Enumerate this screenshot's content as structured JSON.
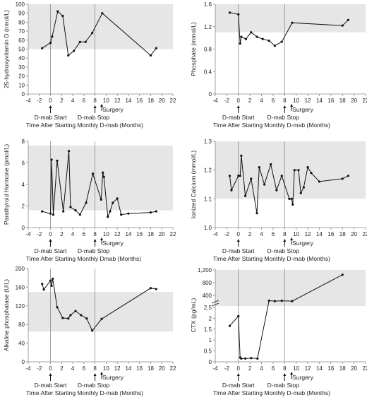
{
  "chart_data": [
    {
      "type": "line",
      "ylabel": "25-hydroxyvitamin D (nmol/L)",
      "xlabel": "Time After Starting Monthly D-mab (Months)",
      "xlim": [
        -4,
        22
      ],
      "xticks": [
        -4,
        -2,
        0,
        2,
        4,
        6,
        8,
        10,
        12,
        14,
        16,
        18,
        20,
        22
      ],
      "ylim": [
        0,
        100
      ],
      "yticks": [
        0,
        10,
        20,
        30,
        40,
        50,
        60,
        70,
        80,
        90,
        100
      ],
      "reference_band": [
        50,
        100
      ],
      "vlines": [
        0,
        8
      ],
      "annotations": [
        "D-mab Start",
        "D-mab Stop",
        "Surgery"
      ],
      "x": [
        -1.5,
        0,
        0.3,
        1.3,
        2.2,
        3.2,
        4.2,
        5.3,
        6.3,
        7.5,
        9.3,
        18,
        19
      ],
      "y": [
        51,
        57,
        64,
        92,
        87,
        43,
        48,
        58,
        58,
        68,
        90,
        43,
        51
      ]
    },
    {
      "type": "line",
      "ylabel": "Phosphate (mmol/L)",
      "xlabel": "Time After Starting Monthly D-mab (Months)",
      "xlim": [
        -4,
        22
      ],
      "xticks": [
        -4,
        -2,
        0,
        2,
        4,
        6,
        8,
        10,
        12,
        14,
        16,
        18,
        20,
        22
      ],
      "ylim": [
        0,
        1.6
      ],
      "yticks": [
        "0",
        "0.4",
        "0.8",
        "1.2",
        "1.6"
      ],
      "reference_band": [
        1.1,
        1.6
      ],
      "vlines": [
        0,
        8
      ],
      "annotations": [
        "D-mab Start",
        "D-mab Stop",
        "Surgery"
      ],
      "x": [
        -1.5,
        0,
        0.3,
        0.5,
        1.3,
        2.2,
        3.2,
        4.2,
        5.3,
        6.3,
        7.5,
        9.3,
        18,
        19
      ],
      "y": [
        1.45,
        1.42,
        0.9,
        1.02,
        0.98,
        1.1,
        1.02,
        0.98,
        0.95,
        0.86,
        0.93,
        1.27,
        1.22,
        1.32
      ]
    },
    {
      "type": "line",
      "ylabel": "Parathyroid Hormone (pmol/L)",
      "xlabel": "Time After Starting Monthly Dmab (Months)",
      "xlim": [
        -4,
        22
      ],
      "xticks": [
        -4,
        -2,
        0,
        2,
        4,
        6,
        8,
        10,
        12,
        14,
        16,
        18,
        20,
        22
      ],
      "ylim": [
        0,
        8
      ],
      "yticks": [
        0,
        2,
        4,
        6,
        8
      ],
      "reference_band": [
        1.6,
        7.6
      ],
      "vlines": [
        0,
        8
      ],
      "annotations": [
        "D-mab Start",
        "D-mab Stop",
        "Surgery"
      ],
      "x": [
        -1.5,
        0,
        0.2,
        0.5,
        1.2,
        2.3,
        3.3,
        3.6,
        4.5,
        5.3,
        6.4,
        7.6,
        9.1,
        9.4,
        9.6,
        10.3,
        10.7,
        11.2,
        12.0,
        12.7,
        14.0,
        18.0,
        19.0
      ],
      "y": [
        1.5,
        1.3,
        6.3,
        1.2,
        6.2,
        1.5,
        7.1,
        1.9,
        1.6,
        1.2,
        2.3,
        5.0,
        2.6,
        5.1,
        4.7,
        1.0,
        1.5,
        2.3,
        2.7,
        1.2,
        1.3,
        1.4,
        1.5
      ]
    },
    {
      "type": "line",
      "ylabel": "Ionized Calcium (mmol/L)",
      "xlabel": "Time After Starting Monthly D-mab (Months)",
      "xlim": [
        -4,
        22
      ],
      "xticks": [
        -4,
        -2,
        0,
        2,
        4,
        6,
        8,
        10,
        12,
        14,
        16,
        18,
        20,
        22
      ],
      "ylim": [
        1.0,
        1.3
      ],
      "yticks": [
        "1.0",
        "1.1",
        "1.2",
        "1.3"
      ],
      "reference_band": [
        1.1,
        1.3
      ],
      "vlines": [
        0,
        8
      ],
      "annotations": [
        "D-mab Start",
        "D-mab Stop",
        "Surgery"
      ],
      "x": [
        -1.5,
        -1.2,
        0,
        0.3,
        0.5,
        1.2,
        2.2,
        3.2,
        3.6,
        4.5,
        5.6,
        6.6,
        7.5,
        8.8,
        9.2,
        9.4,
        9.7,
        10.4,
        10.8,
        11.3,
        12.0,
        12.6,
        14.0,
        18.0,
        19.0
      ],
      "y": [
        1.18,
        1.13,
        1.18,
        1.18,
        1.25,
        1.11,
        1.17,
        1.05,
        1.21,
        1.15,
        1.22,
        1.13,
        1.18,
        1.1,
        1.1,
        1.08,
        1.2,
        1.2,
        1.12,
        1.14,
        1.21,
        1.19,
        1.16,
        1.17,
        1.18
      ]
    },
    {
      "type": "line",
      "ylabel": "Alkaline phosphatase (U/L)",
      "xlabel": "Time After Starting Monthly D-mab (Months)",
      "xlim": [
        -4,
        22
      ],
      "xticks": [
        -4,
        -2,
        0,
        2,
        4,
        6,
        8,
        10,
        12,
        14,
        16,
        18,
        20,
        22
      ],
      "ylim": [
        0,
        200
      ],
      "yticks": [
        0,
        40,
        80,
        120,
        160,
        200
      ],
      "reference_band": [
        65,
        150
      ],
      "vlines": [
        0,
        8
      ],
      "annotations": [
        "D-mab Start",
        "D-mab Stop",
        "Surgery"
      ],
      "x": [
        -1.5,
        -1.2,
        0,
        0.2,
        0.4,
        1.2,
        2.2,
        3.2,
        3.6,
        4.5,
        5.5,
        6.5,
        7.5,
        9.2,
        18.0,
        19.0
      ],
      "y": [
        167,
        155,
        174,
        163,
        178,
        117,
        94,
        93,
        100,
        109,
        100,
        93,
        67,
        92,
        158,
        156
      ]
    },
    {
      "type": "line",
      "ylabel": "CTX (pg/mL)",
      "xlabel": "Time After Starting Monthly D-mab (Months)",
      "xlim": [
        -4,
        22
      ],
      "xticks": [
        -4,
        -2,
        0,
        2,
        4,
        6,
        8,
        10,
        12,
        14,
        16,
        18,
        20,
        22
      ],
      "broken_y_axis": true,
      "ylim_lower": [
        0,
        2.5
      ],
      "yticks_lower": [
        0,
        0.5,
        1,
        1.5,
        2,
        2.5
      ],
      "ylim_upper": [
        200,
        1200
      ],
      "yticks_upper": [
        "400",
        "800",
        "1,200"
      ],
      "reference_band": [
        200,
        1200
      ],
      "vlines": [
        0,
        8
      ],
      "annotations": [
        "D-mab Start",
        "D-mab Stop",
        "Surgery"
      ],
      "x": [
        -1.5,
        0,
        0.3,
        0.5,
        1.2,
        2.2,
        3.3,
        5.3,
        6.3,
        7.5,
        9.3,
        18.0
      ],
      "y": [
        1.65,
        2.1,
        0.2,
        0.15,
        0.15,
        0.17,
        0.15,
        235,
        220,
        230,
        220,
        1050
      ]
    }
  ]
}
